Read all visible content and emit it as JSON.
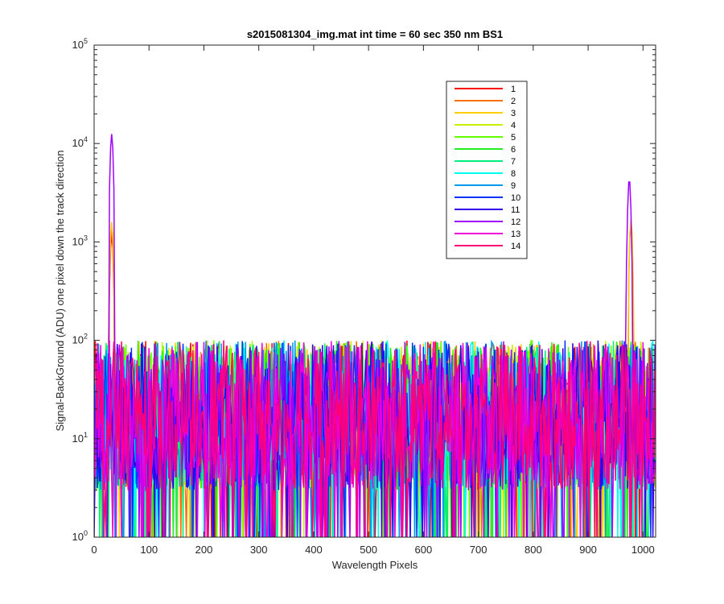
{
  "chart_data": {
    "type": "line",
    "title": "s2015081304_img.mat int time = 60 sec  350 nm BS1",
    "xlabel": "Wavelength Pixels",
    "ylabel": "Signal-BackGround (ADU) one pixel down the track direction",
    "xlim": [
      0,
      1023
    ],
    "ylim": [
      1,
      100000
    ],
    "yscale": "log",
    "xticks": [
      0,
      100,
      200,
      300,
      400,
      500,
      600,
      700,
      800,
      900,
      1000
    ],
    "xtick_labels": [
      "0",
      "100",
      "200",
      "300",
      "400",
      "500",
      "600",
      "700",
      "800",
      "900",
      "1000"
    ],
    "yticks": [
      1,
      10,
      100,
      1000,
      10000,
      100000
    ],
    "ytick_labels": [
      {
        "base": "10",
        "exp": "0"
      },
      {
        "base": "10",
        "exp": "1"
      },
      {
        "base": "10",
        "exp": "2"
      },
      {
        "base": "10",
        "exp": "3"
      },
      {
        "base": "10",
        "exp": "4"
      },
      {
        "base": "10",
        "exp": "5"
      }
    ],
    "grid": false,
    "legend_position": "top-right",
    "noise_range": [
      3,
      100
    ],
    "series": [
      {
        "name": "1",
        "color": "#ff0000",
        "peaks": [
          {
            "x": 32,
            "y": 1200
          }
        ]
      },
      {
        "name": "2",
        "color": "#ff6e00",
        "peaks": [
          {
            "x": 32,
            "y": 1400
          },
          {
            "x": 978,
            "y": 1500
          }
        ]
      },
      {
        "name": "3",
        "color": "#ffcc00",
        "peaks": [
          {
            "x": 32,
            "y": 1600
          },
          {
            "x": 978,
            "y": 1700
          }
        ]
      },
      {
        "name": "4",
        "color": "#c8f000",
        "peaks": []
      },
      {
        "name": "5",
        "color": "#66ff00",
        "peaks": []
      },
      {
        "name": "6",
        "color": "#22ee22",
        "peaks": []
      },
      {
        "name": "7",
        "color": "#00f07a",
        "peaks": []
      },
      {
        "name": "8",
        "color": "#00ffee",
        "peaks": []
      },
      {
        "name": "9",
        "color": "#0099ee",
        "peaks": []
      },
      {
        "name": "10",
        "color": "#0033ff",
        "peaks": []
      },
      {
        "name": "11",
        "color": "#3300ee",
        "peaks": []
      },
      {
        "name": "12",
        "color": "#a000ff",
        "peaks": [
          {
            "x": 32,
            "y": 12500
          },
          {
            "x": 975,
            "y": 4400
          }
        ]
      },
      {
        "name": "13",
        "color": "#ee00dd",
        "peaks": []
      },
      {
        "name": "14",
        "color": "#ff0077",
        "peaks": []
      }
    ]
  }
}
